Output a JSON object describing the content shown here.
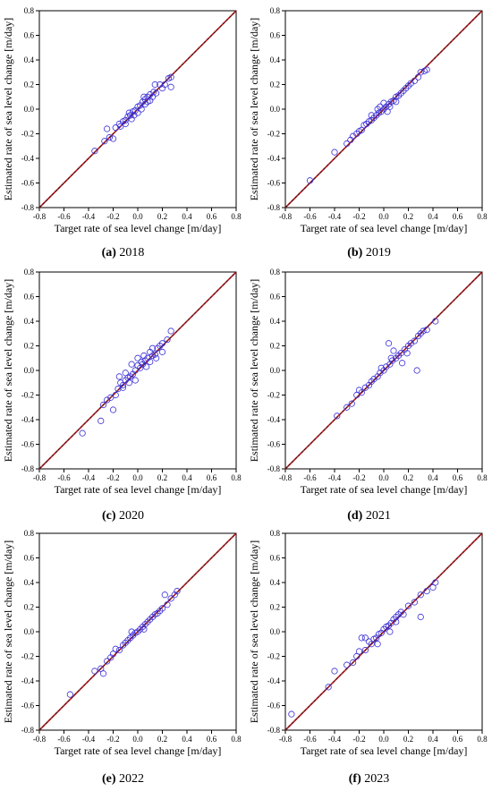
{
  "charts": {
    "x_label": "Target rate of sea level change [m/day]",
    "y_label": "Estimated rate of sea level change [m/day]",
    "ticks": [
      "-0.8",
      "-0.6",
      "-0.4",
      "-0.2",
      "0.0",
      "0.2",
      "0.4",
      "0.6",
      "0.8"
    ],
    "colors": {
      "points": "#3a2fd6",
      "diagonal_red": "#c0161b",
      "diagonal_black": "#1a1a1a",
      "frame": "#000000"
    }
  },
  "panels": [
    {
      "letter": "(a)",
      "year": "2018"
    },
    {
      "letter": "(b)",
      "year": "2019"
    },
    {
      "letter": "(c)",
      "year": "2020"
    },
    {
      "letter": "(d)",
      "year": "2021"
    },
    {
      "letter": "(e)",
      "year": "2022"
    },
    {
      "letter": "(f)",
      "year": "2023"
    }
  ],
  "chart_data": [
    {
      "type": "scatter",
      "title": "(a) 2018",
      "xlim": [
        -0.8,
        0.8
      ],
      "ylim": [
        -0.8,
        0.8
      ],
      "xlabel": "Target rate of sea level change [m/day]",
      "ylabel": "Estimated rate of sea level change [m/day]",
      "grid": false,
      "reference_line": "y = x",
      "points": [
        [
          -0.35,
          -0.34
        ],
        [
          -0.27,
          -0.26
        ],
        [
          -0.25,
          -0.16
        ],
        [
          -0.23,
          -0.23
        ],
        [
          -0.2,
          -0.24
        ],
        [
          -0.18,
          -0.15
        ],
        [
          -0.15,
          -0.12
        ],
        [
          -0.12,
          -0.1
        ],
        [
          -0.1,
          -0.09
        ],
        [
          -0.08,
          -0.06
        ],
        [
          -0.06,
          -0.05
        ],
        [
          -0.04,
          -0.02
        ],
        [
          -0.02,
          -0.01
        ],
        [
          0.0,
          0.02
        ],
        [
          0.02,
          0.03
        ],
        [
          0.04,
          0.06
        ],
        [
          0.06,
          0.08
        ],
        [
          0.08,
          0.06
        ],
        [
          0.1,
          0.12
        ],
        [
          0.12,
          0.1
        ],
        [
          0.14,
          0.2
        ],
        [
          0.15,
          0.13
        ],
        [
          0.18,
          0.2
        ],
        [
          0.22,
          0.2
        ],
        [
          0.25,
          0.25
        ],
        [
          0.27,
          0.26
        ],
        [
          0.27,
          0.18
        ],
        [
          0.0,
          -0.03
        ],
        [
          -0.05,
          -0.08
        ],
        [
          0.05,
          0.1
        ],
        [
          0.08,
          0.1
        ],
        [
          -0.1,
          -0.12
        ],
        [
          0.1,
          0.07
        ],
        [
          0.03,
          0.0
        ],
        [
          -0.14,
          -0.14
        ],
        [
          0.13,
          0.14
        ],
        [
          0.2,
          0.17
        ],
        [
          -0.03,
          -0.05
        ],
        [
          0.06,
          0.04
        ],
        [
          -0.07,
          -0.03
        ]
      ]
    },
    {
      "type": "scatter",
      "title": "(b) 2019",
      "xlim": [
        -0.8,
        0.8
      ],
      "ylim": [
        -0.8,
        0.8
      ],
      "xlabel": "Target rate of sea level change [m/day]",
      "ylabel": "Estimated rate of sea level change [m/day]",
      "grid": false,
      "reference_line": "y = x",
      "points": [
        [
          -0.6,
          -0.58
        ],
        [
          -0.4,
          -0.35
        ],
        [
          -0.3,
          -0.28
        ],
        [
          -0.27,
          -0.25
        ],
        [
          -0.25,
          -0.22
        ],
        [
          -0.22,
          -0.2
        ],
        [
          -0.2,
          -0.18
        ],
        [
          -0.18,
          -0.17
        ],
        [
          -0.16,
          -0.13
        ],
        [
          -0.14,
          -0.12
        ],
        [
          -0.12,
          -0.1
        ],
        [
          -0.1,
          -0.09
        ],
        [
          -0.08,
          -0.07
        ],
        [
          -0.06,
          -0.05
        ],
        [
          -0.04,
          -0.03
        ],
        [
          -0.02,
          -0.02
        ],
        [
          0.0,
          0.0
        ],
        [
          0.02,
          0.02
        ],
        [
          0.04,
          0.04
        ],
        [
          0.06,
          0.06
        ],
        [
          0.08,
          0.07
        ],
        [
          0.1,
          0.1
        ],
        [
          0.12,
          0.11
        ],
        [
          0.14,
          0.13
        ],
        [
          0.16,
          0.15
        ],
        [
          0.18,
          0.17
        ],
        [
          0.2,
          0.19
        ],
        [
          0.22,
          0.21
        ],
        [
          0.25,
          0.23
        ],
        [
          0.28,
          0.26
        ],
        [
          0.3,
          0.3
        ],
        [
          0.33,
          0.31
        ],
        [
          0.35,
          0.32
        ],
        [
          -0.05,
          0.0
        ],
        [
          0.05,
          0.02
        ],
        [
          0.0,
          0.05
        ],
        [
          -0.1,
          -0.05
        ],
        [
          0.1,
          0.06
        ],
        [
          0.03,
          -0.02
        ],
        [
          -0.03,
          0.02
        ]
      ]
    },
    {
      "type": "scatter",
      "title": "(c) 2020",
      "xlim": [
        -0.8,
        0.8
      ],
      "ylim": [
        -0.8,
        0.8
      ],
      "xlabel": "Target rate of sea level change [m/day]",
      "ylabel": "Estimated rate of sea level change [m/day]",
      "grid": false,
      "reference_line": "y = x",
      "points": [
        [
          -0.45,
          -0.51
        ],
        [
          -0.3,
          -0.41
        ],
        [
          -0.28,
          -0.28
        ],
        [
          -0.25,
          -0.24
        ],
        [
          -0.22,
          -0.22
        ],
        [
          -0.2,
          -0.32
        ],
        [
          -0.18,
          -0.2
        ],
        [
          -0.16,
          -0.15
        ],
        [
          -0.14,
          -0.1
        ],
        [
          -0.12,
          -0.12
        ],
        [
          -0.1,
          -0.08
        ],
        [
          -0.08,
          -0.06
        ],
        [
          -0.06,
          -0.05
        ],
        [
          -0.04,
          -0.03
        ],
        [
          -0.02,
          0.0
        ],
        [
          0.0,
          0.04
        ],
        [
          0.02,
          0.02
        ],
        [
          0.04,
          0.05
        ],
        [
          0.06,
          0.08
        ],
        [
          0.08,
          0.1
        ],
        [
          0.1,
          0.07
        ],
        [
          0.12,
          0.12
        ],
        [
          0.14,
          0.13
        ],
        [
          0.16,
          0.18
        ],
        [
          0.18,
          0.2
        ],
        [
          0.2,
          0.22
        ],
        [
          0.24,
          0.25
        ],
        [
          0.27,
          0.32
        ],
        [
          -0.05,
          0.05
        ],
        [
          0.0,
          0.1
        ],
        [
          -0.1,
          -0.02
        ],
        [
          0.05,
          0.12
        ],
        [
          0.1,
          0.15
        ],
        [
          -0.15,
          -0.05
        ],
        [
          0.15,
          0.1
        ],
        [
          -0.02,
          -0.08
        ],
        [
          0.07,
          0.03
        ],
        [
          0.12,
          0.18
        ],
        [
          -0.07,
          -0.1
        ],
        [
          0.03,
          0.07
        ],
        [
          -0.12,
          -0.14
        ],
        [
          0.2,
          0.15
        ]
      ]
    },
    {
      "type": "scatter",
      "title": "(d) 2021",
      "xlim": [
        -0.8,
        0.8
      ],
      "ylim": [
        -0.8,
        0.8
      ],
      "xlabel": "Target rate of sea level change [m/day]",
      "ylabel": "Estimated rate of sea level change [m/day]",
      "grid": false,
      "reference_line": "y = x",
      "points": [
        [
          -0.38,
          -0.37
        ],
        [
          -0.3,
          -0.3
        ],
        [
          -0.26,
          -0.27
        ],
        [
          -0.22,
          -0.2
        ],
        [
          -0.2,
          -0.16
        ],
        [
          -0.18,
          -0.18
        ],
        [
          -0.15,
          -0.14
        ],
        [
          -0.12,
          -0.12
        ],
        [
          -0.1,
          -0.09
        ],
        [
          -0.08,
          -0.07
        ],
        [
          -0.05,
          -0.05
        ],
        [
          -0.03,
          -0.02
        ],
        [
          0.0,
          0.0
        ],
        [
          0.02,
          0.03
        ],
        [
          0.04,
          0.22
        ],
        [
          0.05,
          0.05
        ],
        [
          0.07,
          0.08
        ],
        [
          0.08,
          0.16
        ],
        [
          0.1,
          0.1
        ],
        [
          0.12,
          0.12
        ],
        [
          0.14,
          0.14
        ],
        [
          0.15,
          0.06
        ],
        [
          0.17,
          0.17
        ],
        [
          0.2,
          0.2
        ],
        [
          0.22,
          0.22
        ],
        [
          0.25,
          0.24
        ],
        [
          0.27,
          0.0
        ],
        [
          0.28,
          0.28
        ],
        [
          0.3,
          0.3
        ],
        [
          0.32,
          0.32
        ],
        [
          0.35,
          0.33
        ],
        [
          0.42,
          0.4
        ],
        [
          0.19,
          0.14
        ],
        [
          -0.02,
          0.02
        ],
        [
          0.06,
          0.1
        ]
      ]
    },
    {
      "type": "scatter",
      "title": "(e) 2022",
      "xlim": [
        -0.8,
        0.8
      ],
      "ylim": [
        -0.8,
        0.8
      ],
      "xlabel": "Target rate of sea level change [m/day]",
      "ylabel": "Estimated rate of sea level change [m/day]",
      "grid": false,
      "reference_line": "y = x",
      "points": [
        [
          -0.55,
          -0.51
        ],
        [
          -0.35,
          -0.32
        ],
        [
          -0.3,
          -0.3
        ],
        [
          -0.28,
          -0.34
        ],
        [
          -0.25,
          -0.24
        ],
        [
          -0.22,
          -0.21
        ],
        [
          -0.2,
          -0.18
        ],
        [
          -0.18,
          -0.14
        ],
        [
          -0.15,
          -0.15
        ],
        [
          -0.12,
          -0.11
        ],
        [
          -0.1,
          -0.09
        ],
        [
          -0.08,
          -0.07
        ],
        [
          -0.06,
          -0.05
        ],
        [
          -0.04,
          -0.03
        ],
        [
          -0.02,
          -0.01
        ],
        [
          0.0,
          0.0
        ],
        [
          0.02,
          0.02
        ],
        [
          0.04,
          0.04
        ],
        [
          0.06,
          0.06
        ],
        [
          0.08,
          0.08
        ],
        [
          0.1,
          0.1
        ],
        [
          0.12,
          0.12
        ],
        [
          0.14,
          0.14
        ],
        [
          0.16,
          0.15
        ],
        [
          0.18,
          0.17
        ],
        [
          0.2,
          0.19
        ],
        [
          0.22,
          0.3
        ],
        [
          0.24,
          0.22
        ],
        [
          0.27,
          0.27
        ],
        [
          0.3,
          0.3
        ],
        [
          0.32,
          0.33
        ],
        [
          -0.05,
          0.0
        ],
        [
          0.05,
          0.02
        ]
      ]
    },
    {
      "type": "scatter",
      "title": "(f) 2023",
      "xlim": [
        -0.8,
        0.8
      ],
      "ylim": [
        -0.8,
        0.8
      ],
      "xlabel": "Target rate of sea level change [m/day]",
      "ylabel": "Estimated rate of sea level change [m/day]",
      "grid": false,
      "reference_line": "y = x",
      "points": [
        [
          -0.75,
          -0.67
        ],
        [
          -0.45,
          -0.45
        ],
        [
          -0.4,
          -0.32
        ],
        [
          -0.3,
          -0.27
        ],
        [
          -0.25,
          -0.25
        ],
        [
          -0.22,
          -0.2
        ],
        [
          -0.2,
          -0.16
        ],
        [
          -0.18,
          -0.05
        ],
        [
          -0.15,
          -0.15
        ],
        [
          -0.12,
          -0.08
        ],
        [
          -0.1,
          -0.1
        ],
        [
          -0.08,
          -0.06
        ],
        [
          -0.06,
          -0.05
        ],
        [
          -0.04,
          -0.02
        ],
        [
          -0.02,
          -0.01
        ],
        [
          0.0,
          0.02
        ],
        [
          0.02,
          0.04
        ],
        [
          0.04,
          0.05
        ],
        [
          0.06,
          0.07
        ],
        [
          0.08,
          0.1
        ],
        [
          0.1,
          0.12
        ],
        [
          0.12,
          0.14
        ],
        [
          0.14,
          0.16
        ],
        [
          0.16,
          0.14
        ],
        [
          0.2,
          0.21
        ],
        [
          0.25,
          0.24
        ],
        [
          0.3,
          0.12
        ],
        [
          0.3,
          0.3
        ],
        [
          0.35,
          0.33
        ],
        [
          0.4,
          0.36
        ],
        [
          0.42,
          0.4
        ],
        [
          -0.05,
          -0.1
        ],
        [
          0.05,
          0.0
        ],
        [
          -0.15,
          -0.05
        ],
        [
          0.1,
          0.08
        ]
      ]
    }
  ]
}
